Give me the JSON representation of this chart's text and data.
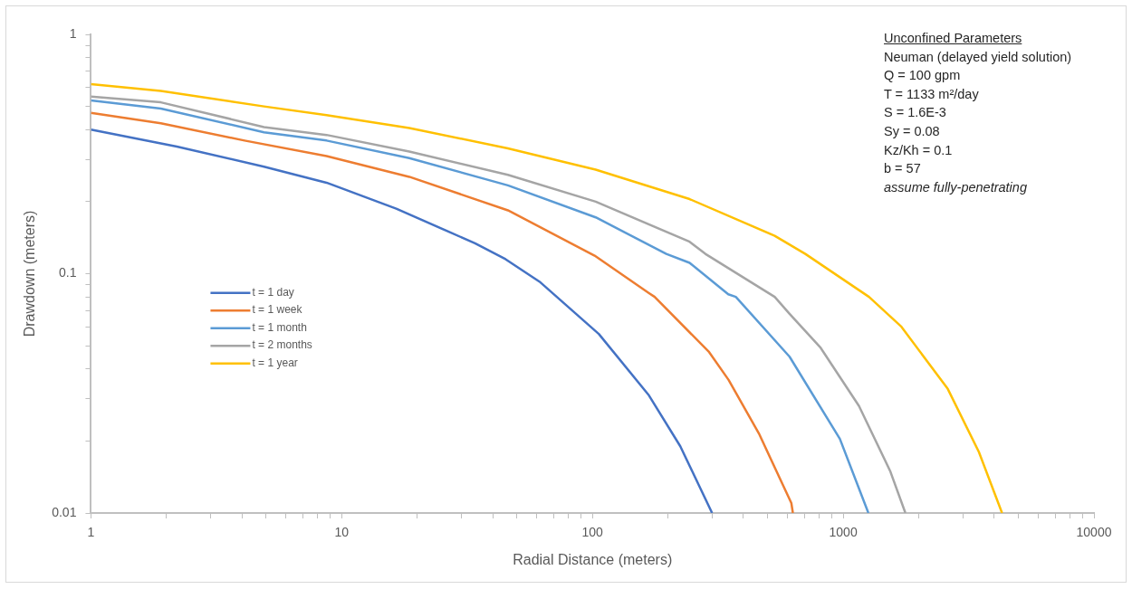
{
  "chart_data": {
    "type": "line",
    "xlabel": "Radial Distance (meters)",
    "ylabel": "Drawdown (meters)",
    "annotations": [
      "Unconfined Parameters",
      "Neuman (delayed yield solution)",
      "Q = 100 gpm",
      "T = 1133 m²/day",
      "S = 1.6E-3",
      "Sy = 0.08",
      "Kz/Kh = 0.1",
      "b = 57",
      "assume fully-penetrating"
    ],
    "log": "xy",
    "grid": false,
    "legend": "left",
    "marker": "none",
    "line_style": "solid",
    "xlim": [
      1,
      10000
    ],
    "ylim": [
      0.01,
      1
    ],
    "xticks": [
      1,
      {
        "value": 2,
        "label": null
      },
      {
        "value": 3,
        "label": null
      },
      {
        "value": 4,
        "label": null
      },
      {
        "value": 5,
        "label": null
      },
      {
        "value": 6,
        "label": null
      },
      {
        "value": 7,
        "label": null
      },
      {
        "value": 8,
        "label": null
      },
      {
        "value": 9,
        "label": null
      },
      10,
      {
        "value": 20,
        "label": null
      },
      {
        "value": 30,
        "label": null
      },
      {
        "value": 40,
        "label": null
      },
      {
        "value": 50,
        "label": null
      },
      {
        "value": 60,
        "label": null
      },
      {
        "value": 70,
        "label": null
      },
      {
        "value": 80,
        "label": null
      },
      {
        "value": 90,
        "label": null
      },
      100,
      {
        "value": 200,
        "label": null
      },
      {
        "value": 300,
        "label": null
      },
      {
        "value": 400,
        "label": null
      },
      {
        "value": 500,
        "label": null
      },
      {
        "value": 600,
        "label": null
      },
      {
        "value": 700,
        "label": null
      },
      {
        "value": 800,
        "label": null
      },
      {
        "value": 900,
        "label": null
      },
      1000,
      {
        "value": 2000,
        "label": null
      },
      {
        "value": 3000,
        "label": null
      },
      {
        "value": 4000,
        "label": null
      },
      {
        "value": 5000,
        "label": null
      },
      {
        "value": 6000,
        "label": null
      },
      {
        "value": 7000,
        "label": null
      },
      {
        "value": 8000,
        "label": null
      },
      {
        "value": 9000,
        "label": null
      },
      10000
    ],
    "yticks": [
      0.01,
      {
        "value": 0.02,
        "label": null
      },
      {
        "value": 0.03,
        "label": null
      },
      {
        "value": 0.04,
        "label": null
      },
      {
        "value": 0.05,
        "label": null
      },
      {
        "value": 0.06,
        "label": null
      },
      {
        "value": 0.07,
        "label": null
      },
      {
        "value": 0.08,
        "label": null
      },
      {
        "value": 0.09,
        "label": null
      },
      0.1,
      {
        "value": 0.2,
        "label": null
      },
      {
        "value": 0.3,
        "label": null
      },
      {
        "value": 0.4,
        "label": null
      },
      {
        "value": 0.5,
        "label": null
      },
      {
        "value": 0.6,
        "label": null
      },
      {
        "value": 0.7,
        "label": null
      },
      {
        "value": 0.8,
        "label": null
      },
      {
        "value": 0.9,
        "label": null
      },
      1
    ],
    "series": [
      {
        "name": "t = 1 day",
        "color": "#4472c4",
        "x": [
          1,
          2.2,
          4.9,
          8.7,
          16.5,
          34,
          45,
          62,
          106,
          168,
          224,
          300
        ],
        "values": [
          0.4,
          0.34,
          0.28,
          0.24,
          0.187,
          0.134,
          0.115,
          0.092,
          0.056,
          0.031,
          0.019,
          0.01
        ]
      },
      {
        "name": "t = 1 week",
        "color": "#ed7d31",
        "x": [
          1,
          1.9,
          4.1,
          8.7,
          18.6,
          46,
          102,
          168,
          177,
          292,
          349,
          461,
          621,
          630
        ],
        "values": [
          0.47,
          0.425,
          0.36,
          0.31,
          0.254,
          0.184,
          0.119,
          0.083,
          0.08,
          0.047,
          0.036,
          0.0215,
          0.011,
          0.01
        ]
      },
      {
        "name": "t = 1 month",
        "color": "#5b9bd5",
        "x": [
          1,
          1.9,
          4.9,
          8.7,
          18.6,
          46,
          103,
          197,
          244,
          348,
          373,
          611,
          970,
          1260
        ],
        "values": [
          0.53,
          0.49,
          0.39,
          0.36,
          0.304,
          0.234,
          0.172,
          0.121,
          0.111,
          0.082,
          0.08,
          0.045,
          0.0204,
          0.01
        ]
      },
      {
        "name": "t = 2 months",
        "color": "#a5a5a5",
        "x": [
          1,
          1.9,
          4.9,
          8.7,
          18.6,
          46,
          103,
          244,
          282,
          533,
          611,
          813,
          1156,
          1538,
          1770
        ],
        "values": [
          0.55,
          0.52,
          0.41,
          0.38,
          0.324,
          0.259,
          0.2,
          0.136,
          0.121,
          0.08,
          0.068,
          0.049,
          0.028,
          0.015,
          0.01
        ]
      },
      {
        "name": "t = 1 year",
        "color": "#ffc000",
        "x": [
          1,
          1.9,
          4.9,
          8.7,
          18.6,
          46,
          103,
          244,
          533,
          706,
          1267,
          1707,
          2612,
          3475,
          4300
        ],
        "values": [
          0.62,
          0.58,
          0.5,
          0.46,
          0.406,
          0.334,
          0.272,
          0.205,
          0.144,
          0.121,
          0.08,
          0.06,
          0.033,
          0.018,
          0.01
        ]
      }
    ]
  }
}
